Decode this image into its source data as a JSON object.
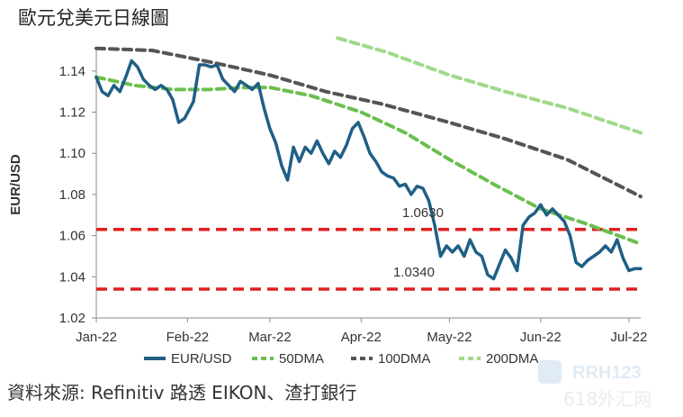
{
  "page": {
    "title": "歐元兌美元日線圖",
    "source": "資料來源: Refinitiv 路透 EIKON、渣打銀行",
    "watermark_lines": [
      "RRH123",
      "618外汇网"
    ]
  },
  "chart_data": {
    "type": "line",
    "title": "歐元兌美元日線圖",
    "ylabel": "EUR/USD",
    "xlabel": "",
    "ylim": [
      1.02,
      1.15
    ],
    "yticks": [
      1.02,
      1.04,
      1.06,
      1.08,
      1.1,
      1.12,
      1.14
    ],
    "ytick_labels": [
      "1.02",
      "1.04",
      "1.06",
      "1.08",
      "1.10",
      "1.12",
      "1.14"
    ],
    "xlim": [
      "2022-01-01",
      "2022-07-05"
    ],
    "xticks": [
      "2022-01-01",
      "2022-02-01",
      "2022-03-01",
      "2022-04-01",
      "2022-05-01",
      "2022-06-01",
      "2022-07-01"
    ],
    "xtick_labels": [
      "Jan-22",
      "Feb-22",
      "Mar-22",
      "Apr-22",
      "May-22",
      "Jun-22",
      "Jul-22"
    ],
    "grid": false,
    "legend_position": "bottom",
    "series": [
      {
        "name": "EUR/USD",
        "style": "solid",
        "color": "#1f5f86",
        "points": [
          [
            "2022-01-01",
            1.137
          ],
          [
            "2022-01-03",
            1.13
          ],
          [
            "2022-01-05",
            1.128
          ],
          [
            "2022-01-07",
            1.133
          ],
          [
            "2022-01-09",
            1.13
          ],
          [
            "2022-01-11",
            1.137
          ],
          [
            "2022-01-13",
            1.145
          ],
          [
            "2022-01-15",
            1.142
          ],
          [
            "2022-01-17",
            1.136
          ],
          [
            "2022-01-19",
            1.133
          ],
          [
            "2022-01-21",
            1.131
          ],
          [
            "2022-01-23",
            1.133
          ],
          [
            "2022-01-25",
            1.131
          ],
          [
            "2022-01-27",
            1.126
          ],
          [
            "2022-01-29",
            1.115
          ],
          [
            "2022-01-31",
            1.117
          ],
          [
            "2022-02-03",
            1.125
          ],
          [
            "2022-02-05",
            1.143
          ],
          [
            "2022-02-07",
            1.143
          ],
          [
            "2022-02-09",
            1.142
          ],
          [
            "2022-02-11",
            1.143
          ],
          [
            "2022-02-13",
            1.136
          ],
          [
            "2022-02-15",
            1.133
          ],
          [
            "2022-02-17",
            1.13
          ],
          [
            "2022-02-19",
            1.135
          ],
          [
            "2022-02-21",
            1.133
          ],
          [
            "2022-02-23",
            1.131
          ],
          [
            "2022-02-25",
            1.134
          ],
          [
            "2022-02-27",
            1.122
          ],
          [
            "2022-03-01",
            1.112
          ],
          [
            "2022-03-03",
            1.105
          ],
          [
            "2022-03-05",
            1.094
          ],
          [
            "2022-03-07",
            1.087
          ],
          [
            "2022-03-09",
            1.103
          ],
          [
            "2022-03-11",
            1.096
          ],
          [
            "2022-03-13",
            1.103
          ],
          [
            "2022-03-15",
            1.1
          ],
          [
            "2022-03-17",
            1.106
          ],
          [
            "2022-03-19",
            1.1
          ],
          [
            "2022-03-21",
            1.095
          ],
          [
            "2022-03-23",
            1.101
          ],
          [
            "2022-03-25",
            1.098
          ],
          [
            "2022-03-27",
            1.104
          ],
          [
            "2022-03-29",
            1.112
          ],
          [
            "2022-03-31",
            1.115
          ],
          [
            "2022-04-02",
            1.108
          ],
          [
            "2022-04-04",
            1.1
          ],
          [
            "2022-04-06",
            1.096
          ],
          [
            "2022-04-08",
            1.091
          ],
          [
            "2022-04-10",
            1.089
          ],
          [
            "2022-04-12",
            1.088
          ],
          [
            "2022-04-14",
            1.084
          ],
          [
            "2022-04-16",
            1.085
          ],
          [
            "2022-04-18",
            1.08
          ],
          [
            "2022-04-20",
            1.084
          ],
          [
            "2022-04-22",
            1.083
          ],
          [
            "2022-04-24",
            1.077
          ],
          [
            "2022-04-26",
            1.065
          ],
          [
            "2022-04-28",
            1.05
          ],
          [
            "2022-04-30",
            1.055
          ],
          [
            "2022-05-02",
            1.052
          ],
          [
            "2022-05-04",
            1.055
          ],
          [
            "2022-05-06",
            1.05
          ],
          [
            "2022-05-08",
            1.058
          ],
          [
            "2022-05-10",
            1.052
          ],
          [
            "2022-05-12",
            1.05
          ],
          [
            "2022-05-14",
            1.041
          ],
          [
            "2022-05-16",
            1.039
          ],
          [
            "2022-05-18",
            1.046
          ],
          [
            "2022-05-20",
            1.053
          ],
          [
            "2022-05-22",
            1.049
          ],
          [
            "2022-05-24",
            1.043
          ],
          [
            "2022-05-26",
            1.065
          ],
          [
            "2022-05-28",
            1.069
          ],
          [
            "2022-05-30",
            1.071
          ],
          [
            "2022-06-01",
            1.075
          ],
          [
            "2022-06-03",
            1.07
          ],
          [
            "2022-06-05",
            1.073
          ],
          [
            "2022-06-07",
            1.07
          ],
          [
            "2022-06-09",
            1.067
          ],
          [
            "2022-06-11",
            1.06
          ],
          [
            "2022-06-13",
            1.047
          ],
          [
            "2022-06-15",
            1.045
          ],
          [
            "2022-06-17",
            1.048
          ],
          [
            "2022-06-19",
            1.05
          ],
          [
            "2022-06-21",
            1.052
          ],
          [
            "2022-06-23",
            1.055
          ],
          [
            "2022-06-25",
            1.052
          ],
          [
            "2022-06-27",
            1.058
          ],
          [
            "2022-06-29",
            1.049
          ],
          [
            "2022-07-01",
            1.043
          ],
          [
            "2022-07-03",
            1.044
          ],
          [
            "2022-07-05",
            1.044
          ]
        ]
      },
      {
        "name": "50DMA",
        "style": "dashed",
        "color": "#6bbf4e",
        "points": [
          [
            "2022-01-01",
            1.137
          ],
          [
            "2022-01-14",
            1.133
          ],
          [
            "2022-01-27",
            1.131
          ],
          [
            "2022-02-08",
            1.131
          ],
          [
            "2022-02-20",
            1.132
          ],
          [
            "2022-03-01",
            1.132
          ],
          [
            "2022-03-15",
            1.128
          ],
          [
            "2022-04-01",
            1.12
          ],
          [
            "2022-04-16",
            1.11
          ],
          [
            "2022-05-01",
            1.097
          ],
          [
            "2022-05-16",
            1.085
          ],
          [
            "2022-06-01",
            1.073
          ],
          [
            "2022-06-16",
            1.066
          ],
          [
            "2022-07-05",
            1.056
          ]
        ]
      },
      {
        "name": "100DMA",
        "style": "dashed",
        "color": "#555555",
        "points": [
          [
            "2022-01-01",
            1.151
          ],
          [
            "2022-01-20",
            1.15
          ],
          [
            "2022-02-10",
            1.144
          ],
          [
            "2022-03-01",
            1.138
          ],
          [
            "2022-03-20",
            1.13
          ],
          [
            "2022-04-08",
            1.124
          ],
          [
            "2022-05-01",
            1.115
          ],
          [
            "2022-05-20",
            1.107
          ],
          [
            "2022-06-10",
            1.097
          ],
          [
            "2022-07-05",
            1.079
          ]
        ]
      },
      {
        "name": "200DMA",
        "style": "dashed",
        "color": "#9fd98a",
        "points": [
          [
            "2022-03-24",
            1.156
          ],
          [
            "2022-04-10",
            1.149
          ],
          [
            "2022-05-01",
            1.138
          ],
          [
            "2022-05-20",
            1.13
          ],
          [
            "2022-06-10",
            1.122
          ],
          [
            "2022-07-05",
            1.11
          ]
        ]
      }
    ],
    "hlines": [
      {
        "y": 1.063,
        "label": "1.0630",
        "color": "#e02020",
        "style": "dashed"
      },
      {
        "y": 1.034,
        "label": "1.0340",
        "color": "#e02020",
        "style": "dashed"
      }
    ]
  }
}
